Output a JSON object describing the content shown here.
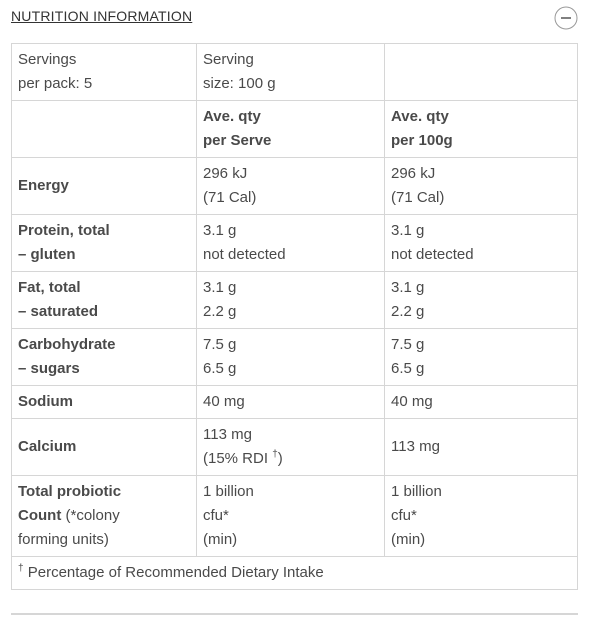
{
  "header": {
    "title": "NUTRITION INFORMATION"
  },
  "table": {
    "rows": [
      [
        [
          "Servings",
          "per pack: 5"
        ],
        [
          "Serving",
          "size: 100 g"
        ],
        []
      ],
      [
        [],
        [
          "Ave. qty",
          "per Serve"
        ],
        [
          "Ave. qty",
          "per 100g"
        ]
      ],
      [
        [
          "Energy"
        ],
        [
          "296 kJ",
          "(71 Cal)"
        ],
        [
          "296 kJ",
          "(71 Cal)"
        ]
      ],
      [
        [
          "Protein, total",
          "– gluten"
        ],
        [
          "3.1 g",
          "not detected"
        ],
        [
          "3.1 g",
          "not detected"
        ]
      ],
      [
        [
          "Fat, total",
          "– saturated"
        ],
        [
          "3.1 g",
          "2.2 g"
        ],
        [
          "3.1 g",
          "2.2 g"
        ]
      ],
      [
        [
          "Carbohydrate",
          "– sugars"
        ],
        [
          "7.5 g",
          "6.5 g"
        ],
        [
          "7.5 g",
          "6.5 g"
        ]
      ],
      [
        [
          "Sodium"
        ],
        [
          "40 mg"
        ],
        [
          "40 mg"
        ]
      ],
      [
        [
          "Calcium"
        ],
        [
          "113 mg",
          "(15% RDI",
          "†",
          ")"
        ],
        [
          "113 mg"
        ]
      ],
      [
        [
          "Total probiotic",
          "Count",
          "(*colony",
          "forming units)"
        ],
        [
          "1 billion",
          "cfu*",
          "(min)"
        ],
        [
          "1 billion",
          "cfu*",
          "(min)"
        ]
      ]
    ]
  },
  "footnote": {
    "symbol": "†",
    "text": "Percentage of Recommended Dietary Intake"
  }
}
